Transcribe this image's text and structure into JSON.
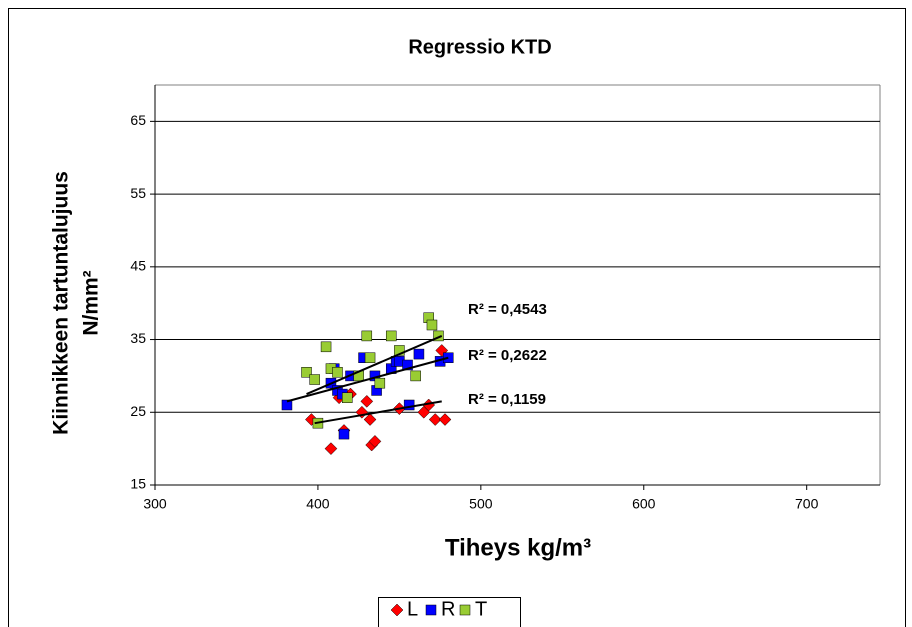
{
  "chart_data": {
    "type": "scatter",
    "title": "Regressio KTD",
    "xlabel": "Tiheys kg/m³",
    "ylabel": [
      "Kiinnikkeen tartuntalujuus",
      "N/mm²"
    ],
    "xlim": [
      300,
      745
    ],
    "xticks": [
      300,
      400,
      500,
      600,
      700
    ],
    "ylim": [
      15,
      70
    ],
    "yticks": [
      15,
      25,
      35,
      45,
      55,
      65
    ],
    "grid": true,
    "series": [
      {
        "name": "L",
        "color": "#ff0000",
        "marker": "diamond",
        "x": [
          396,
          408,
          413,
          416,
          420,
          427,
          430,
          432,
          433,
          435,
          450,
          465,
          468,
          472,
          476,
          478
        ],
        "values": [
          24,
          20,
          27,
          22.5,
          27.5,
          25,
          26.5,
          24,
          20.5,
          21,
          25.5,
          25,
          26,
          24,
          33.5,
          24
        ],
        "trendline": {
          "x": [
            398,
            476
          ],
          "values": [
            23.5,
            26.5
          ],
          "label": "R² = 0,1159"
        }
      },
      {
        "name": "R",
        "color": "#0000ff",
        "marker": "square",
        "x": [
          381,
          408,
          410,
          412,
          415,
          416,
          420,
          428,
          435,
          436,
          445,
          448,
          450,
          455,
          456,
          462,
          475,
          480
        ],
        "values": [
          26,
          29,
          31,
          28,
          27.5,
          22,
          30,
          32.5,
          30,
          28,
          31,
          32,
          32,
          31.5,
          26,
          33,
          32,
          32.5
        ],
        "trendline": {
          "x": [
            381,
            480
          ],
          "values": [
            26.5,
            32.5
          ],
          "label": "R² = 0,2622"
        }
      },
      {
        "name": "T",
        "color": "#99cc33",
        "marker": "square",
        "x": [
          393,
          398,
          400,
          405,
          408,
          412,
          418,
          425,
          430,
          432,
          438,
          445,
          450,
          460,
          468,
          470,
          474
        ],
        "values": [
          30.5,
          29.5,
          23.5,
          34,
          31,
          30.5,
          27,
          30,
          35.5,
          32.5,
          29,
          35.5,
          33.5,
          30,
          38,
          37,
          35.5
        ],
        "trendline": {
          "x": [
            393,
            476
          ],
          "values": [
            27.5,
            35.5
          ],
          "label": "R² = 0,4543"
        }
      }
    ]
  }
}
